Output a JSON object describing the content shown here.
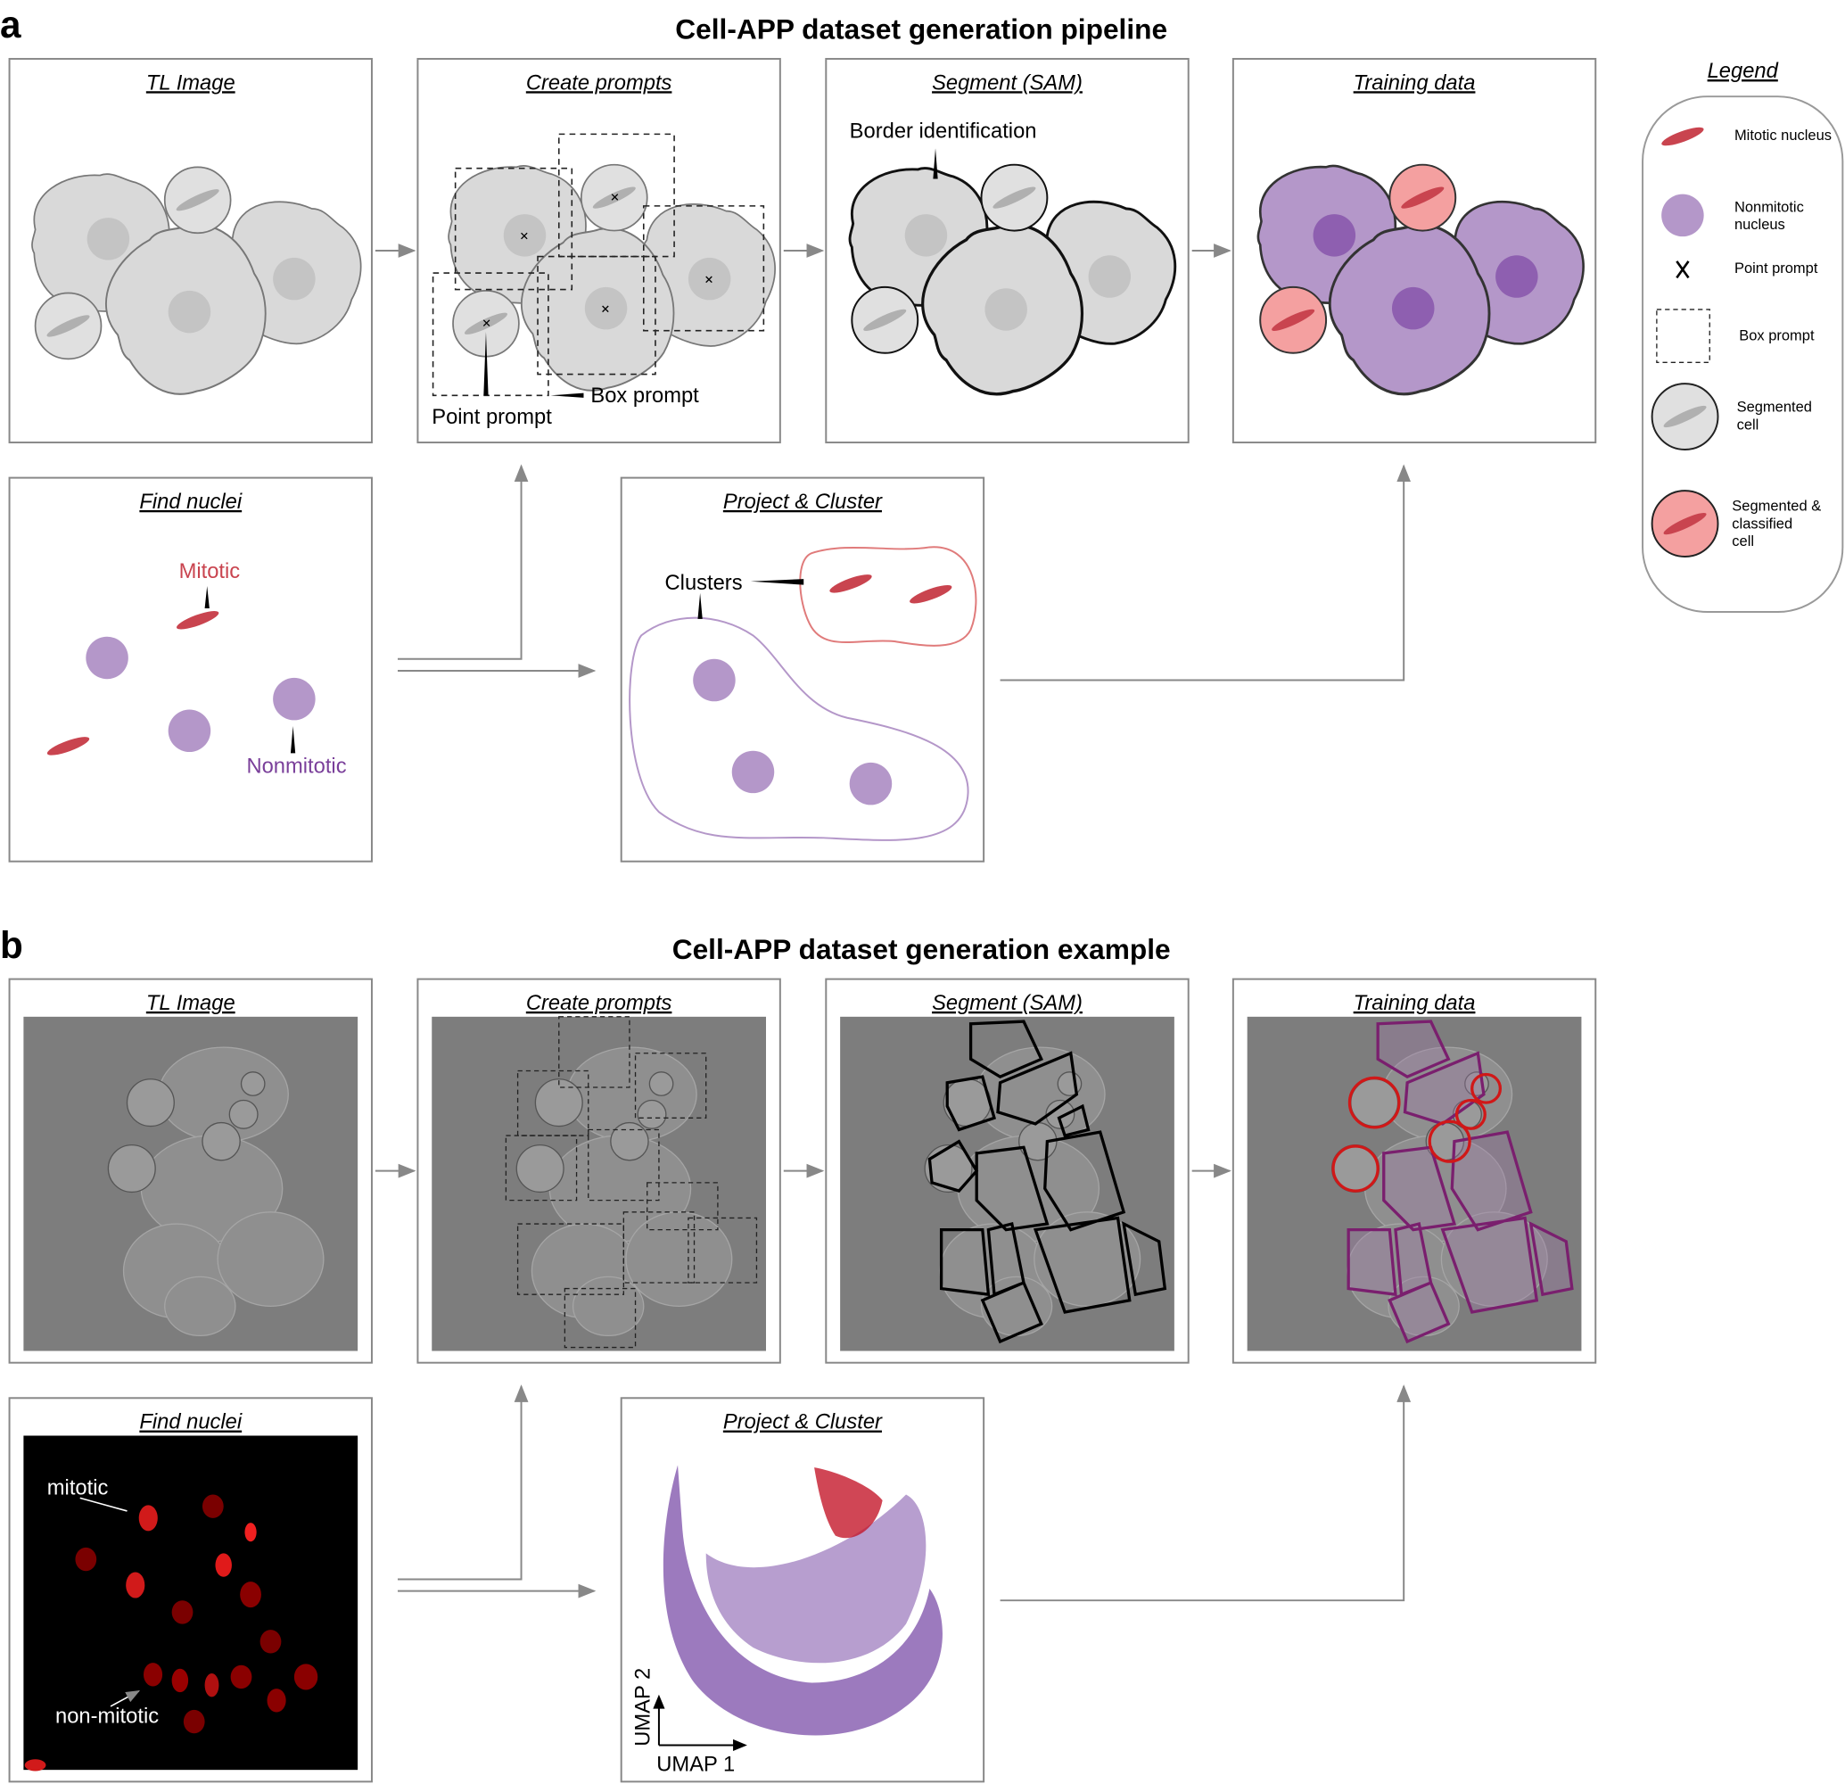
{
  "panel_a": {
    "letter": "a",
    "title": "Cell-APP dataset generation pipeline",
    "boxes": [
      "TL Image",
      "Create prompts",
      "Segment (SAM)",
      "Training data",
      "Find nuclei",
      "Project & Cluster"
    ],
    "annotations": {
      "point_prompt": "Point prompt",
      "box_prompt": "Box prompt",
      "border": "Border identification",
      "mitotic": "Mitotic",
      "nonmitotic": "Nonmitotic",
      "clusters": "Clusters"
    }
  },
  "legend": {
    "title": "Legend",
    "items": [
      [
        "Mitotic nucleus"
      ],
      [
        "Nonmitotic",
        "nucleus"
      ],
      [
        "Point prompt"
      ],
      [
        "Box prompt"
      ],
      [
        "Segmented",
        "cell"
      ],
      [
        "Segmented &",
        "classified",
        "cell"
      ]
    ]
  },
  "panel_b": {
    "letter": "b",
    "title": "Cell-APP dataset generation example",
    "boxes": [
      "TL Image",
      "Create prompts",
      "Segment (SAM)",
      "Training data",
      "Find nuclei",
      "Project & Cluster"
    ],
    "annotations": {
      "mitotic": "mitotic",
      "non_mitotic": "non-mitotic",
      "umap1": "UMAP 1",
      "umap2": "UMAP 2"
    }
  }
}
